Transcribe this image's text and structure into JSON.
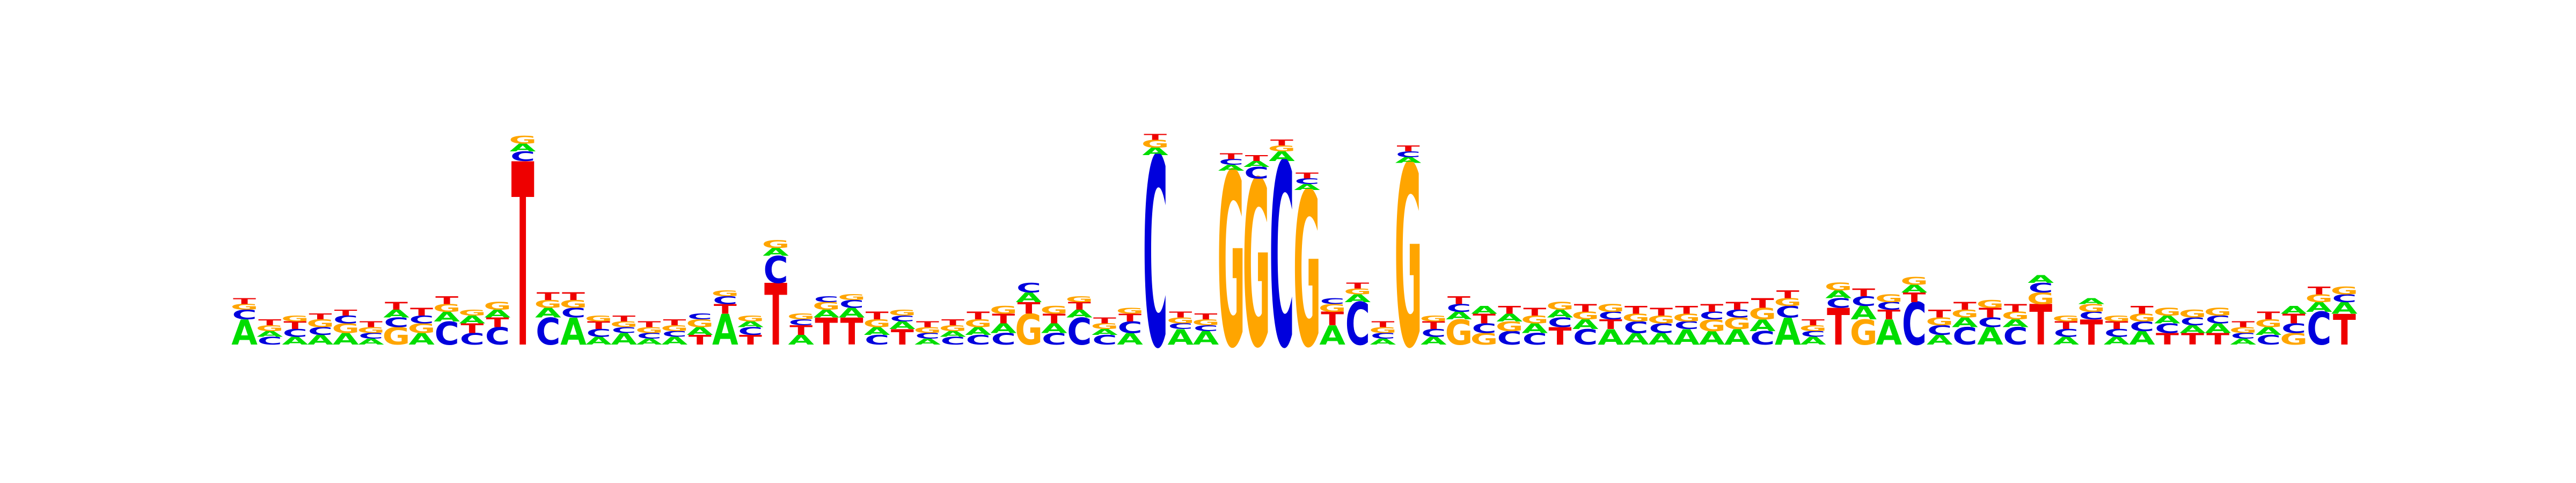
{
  "chart_data": {
    "type": "sequence_logo",
    "alphabet": [
      "A",
      "C",
      "G",
      "T"
    ],
    "colors": {
      "A": "#00dd00",
      "C": "#0000dd",
      "G": "#ffa500",
      "T": "#ee0000"
    },
    "ylim": [
      0,
      2
    ],
    "axes_shown": false,
    "grid": false,
    "positions": [
      {
        "A": 0.13,
        "C": 0.05,
        "G": 0.03,
        "T": 0.03
      },
      {
        "A": 0.03,
        "C": 0.04,
        "G": 0.03,
        "T": 0.03
      },
      {
        "A": 0.04,
        "C": 0.04,
        "G": 0.03,
        "T": 0.04
      },
      {
        "A": 0.05,
        "C": 0.04,
        "G": 0.04,
        "T": 0.03
      },
      {
        "A": 0.06,
        "C": 0.04,
        "G": 0.05,
        "T": 0.03
      },
      {
        "A": 0.03,
        "C": 0.03,
        "G": 0.03,
        "T": 0.03
      },
      {
        "A": 0.04,
        "C": 0.05,
        "G": 0.09,
        "T": 0.04
      },
      {
        "A": 0.06,
        "C": 0.04,
        "G": 0.05,
        "T": 0.04
      },
      {
        "A": 0.05,
        "C": 0.12,
        "G": 0.04,
        "T": 0.04
      },
      {
        "A": 0.04,
        "C": 0.06,
        "G": 0.03,
        "T": 0.05
      },
      {
        "A": 0.04,
        "C": 0.09,
        "G": 0.04,
        "T": 0.05
      },
      {
        "A": 0.04,
        "C": 0.05,
        "G": 0.04,
        "T": 0.95
      },
      {
        "A": 0.05,
        "C": 0.14,
        "G": 0.04,
        "T": 0.04
      },
      {
        "A": 0.14,
        "C": 0.05,
        "G": 0.04,
        "T": 0.04
      },
      {
        "A": 0.04,
        "C": 0.04,
        "G": 0.03,
        "T": 0.04
      },
      {
        "A": 0.06,
        "C": 0.03,
        "G": 0.03,
        "T": 0.03
      },
      {
        "A": 0.03,
        "C": 0.03,
        "G": 0.03,
        "T": 0.03
      },
      {
        "A": 0.04,
        "C": 0.03,
        "G": 0.03,
        "T": 0.03
      },
      {
        "A": 0.04,
        "C": 0.03,
        "G": 0.04,
        "T": 0.05
      },
      {
        "A": 0.16,
        "C": 0.04,
        "G": 0.03,
        "T": 0.05
      },
      {
        "A": 0.03,
        "C": 0.04,
        "G": 0.03,
        "T": 0.05
      },
      {
        "A": 0.04,
        "C": 0.14,
        "G": 0.04,
        "T": 0.32
      },
      {
        "A": 0.05,
        "C": 0.03,
        "G": 0.03,
        "T": 0.05
      },
      {
        "A": 0.04,
        "C": 0.03,
        "G": 0.04,
        "T": 0.14
      },
      {
        "A": 0.05,
        "C": 0.04,
        "G": 0.03,
        "T": 0.14
      },
      {
        "A": 0.04,
        "C": 0.05,
        "G": 0.04,
        "T": 0.04
      },
      {
        "A": 0.04,
        "C": 0.03,
        "G": 0.03,
        "T": 0.08
      },
      {
        "A": 0.03,
        "C": 0.03,
        "G": 0.03,
        "T": 0.03
      },
      {
        "A": 0.03,
        "C": 0.04,
        "G": 0.03,
        "T": 0.03
      },
      {
        "A": 0.04,
        "C": 0.05,
        "G": 0.04,
        "T": 0.04
      },
      {
        "A": 0.05,
        "C": 0.06,
        "G": 0.04,
        "T": 0.05
      },
      {
        "A": 0.05,
        "C": 0.05,
        "G": 0.16,
        "T": 0.06
      },
      {
        "A": 0.05,
        "C": 0.06,
        "G": 0.04,
        "T": 0.05
      },
      {
        "A": 0.04,
        "C": 0.14,
        "G": 0.03,
        "T": 0.04
      },
      {
        "A": 0.03,
        "C": 0.05,
        "G": 0.03,
        "T": 0.03
      },
      {
        "A": 0.06,
        "C": 0.06,
        "G": 0.03,
        "T": 0.04
      },
      {
        "A": 0.04,
        "C": 0.98,
        "G": 0.04,
        "T": 0.03
      },
      {
        "A": 0.08,
        "C": 0.03,
        "G": 0.03,
        "T": 0.03
      },
      {
        "A": 0.07,
        "C": 0.03,
        "G": 0.03,
        "T": 0.03
      },
      {
        "A": 0.03,
        "C": 0.03,
        "G": 0.9,
        "T": 0.03
      },
      {
        "A": 0.03,
        "C": 0.06,
        "G": 0.86,
        "T": 0.03
      },
      {
        "A": 0.05,
        "C": 0.95,
        "G": 0.03,
        "T": 0.03
      },
      {
        "A": 0.03,
        "C": 0.03,
        "G": 0.8,
        "T": 0.03
      },
      {
        "A": 0.1,
        "C": 0.03,
        "G": 0.04,
        "T": 0.07
      },
      {
        "A": 0.04,
        "C": 0.22,
        "G": 0.03,
        "T": 0.03
      },
      {
        "A": 0.03,
        "C": 0.03,
        "G": 0.03,
        "T": 0.03
      },
      {
        "A": 0.03,
        "C": 0.03,
        "G": 0.94,
        "T": 0.03
      },
      {
        "A": 0.04,
        "C": 0.04,
        "G": 0.03,
        "T": 0.04
      },
      {
        "A": 0.04,
        "C": 0.04,
        "G": 0.13,
        "T": 0.04
      },
      {
        "A": 0.04,
        "C": 0.05,
        "G": 0.06,
        "T": 0.05
      },
      {
        "A": 0.04,
        "C": 0.07,
        "G": 0.05,
        "T": 0.04
      },
      {
        "A": 0.05,
        "C": 0.06,
        "G": 0.04,
        "T": 0.04
      },
      {
        "A": 0.04,
        "C": 0.05,
        "G": 0.04,
        "T": 0.09
      },
      {
        "A": 0.05,
        "C": 0.08,
        "G": 0.04,
        "T": 0.04
      },
      {
        "A": 0.08,
        "C": 0.04,
        "G": 0.04,
        "T": 0.05
      },
      {
        "A": 0.06,
        "C": 0.06,
        "G": 0.04,
        "T": 0.04
      },
      {
        "A": 0.06,
        "C": 0.05,
        "G": 0.04,
        "T": 0.04
      },
      {
        "A": 0.08,
        "C": 0.04,
        "G": 0.04,
        "T": 0.04
      },
      {
        "A": 0.07,
        "C": 0.04,
        "G": 0.06,
        "T": 0.04
      },
      {
        "A": 0.08,
        "C": 0.04,
        "G": 0.06,
        "T": 0.04
      },
      {
        "A": 0.06,
        "C": 0.07,
        "G": 0.06,
        "T": 0.05
      },
      {
        "A": 0.14,
        "C": 0.06,
        "G": 0.04,
        "T": 0.04
      },
      {
        "A": 0.04,
        "C": 0.03,
        "G": 0.03,
        "T": 0.03
      },
      {
        "A": 0.04,
        "C": 0.05,
        "G": 0.04,
        "T": 0.19
      },
      {
        "A": 0.07,
        "C": 0.05,
        "G": 0.13,
        "T": 0.04
      },
      {
        "A": 0.13,
        "C": 0.04,
        "G": 0.04,
        "T": 0.05
      },
      {
        "A": 0.04,
        "C": 0.22,
        "G": 0.04,
        "T": 0.05
      },
      {
        "A": 0.05,
        "C": 0.05,
        "G": 0.04,
        "T": 0.04
      },
      {
        "A": 0.05,
        "C": 0.09,
        "G": 0.04,
        "T": 0.04
      },
      {
        "A": 0.09,
        "C": 0.05,
        "G": 0.04,
        "T": 0.05
      },
      {
        "A": 0.04,
        "C": 0.09,
        "G": 0.04,
        "T": 0.04
      },
      {
        "A": 0.04,
        "C": 0.05,
        "G": 0.06,
        "T": 0.21
      },
      {
        "A": 0.04,
        "C": 0.04,
        "G": 0.03,
        "T": 0.04
      },
      {
        "A": 0.03,
        "C": 0.04,
        "G": 0.04,
        "T": 0.13
      },
      {
        "A": 0.04,
        "C": 0.04,
        "G": 0.03,
        "T": 0.04
      },
      {
        "A": 0.07,
        "C": 0.05,
        "G": 0.04,
        "T": 0.04
      },
      {
        "A": 0.04,
        "C": 0.05,
        "G": 0.04,
        "T": 0.06
      },
      {
        "A": 0.04,
        "C": 0.04,
        "G": 0.04,
        "T": 0.06
      },
      {
        "A": 0.05,
        "C": 0.04,
        "G": 0.04,
        "T": 0.06
      },
      {
        "A": 0.03,
        "C": 0.03,
        "G": 0.03,
        "T": 0.03
      },
      {
        "A": 0.04,
        "C": 0.05,
        "G": 0.04,
        "T": 0.04
      },
      {
        "A": 0.04,
        "C": 0.05,
        "G": 0.06,
        "T": 0.05
      },
      {
        "A": 0.05,
        "C": 0.17,
        "G": 0.04,
        "T": 0.04
      },
      {
        "A": 0.06,
        "C": 0.04,
        "G": 0.04,
        "T": 0.16
      }
    ]
  }
}
